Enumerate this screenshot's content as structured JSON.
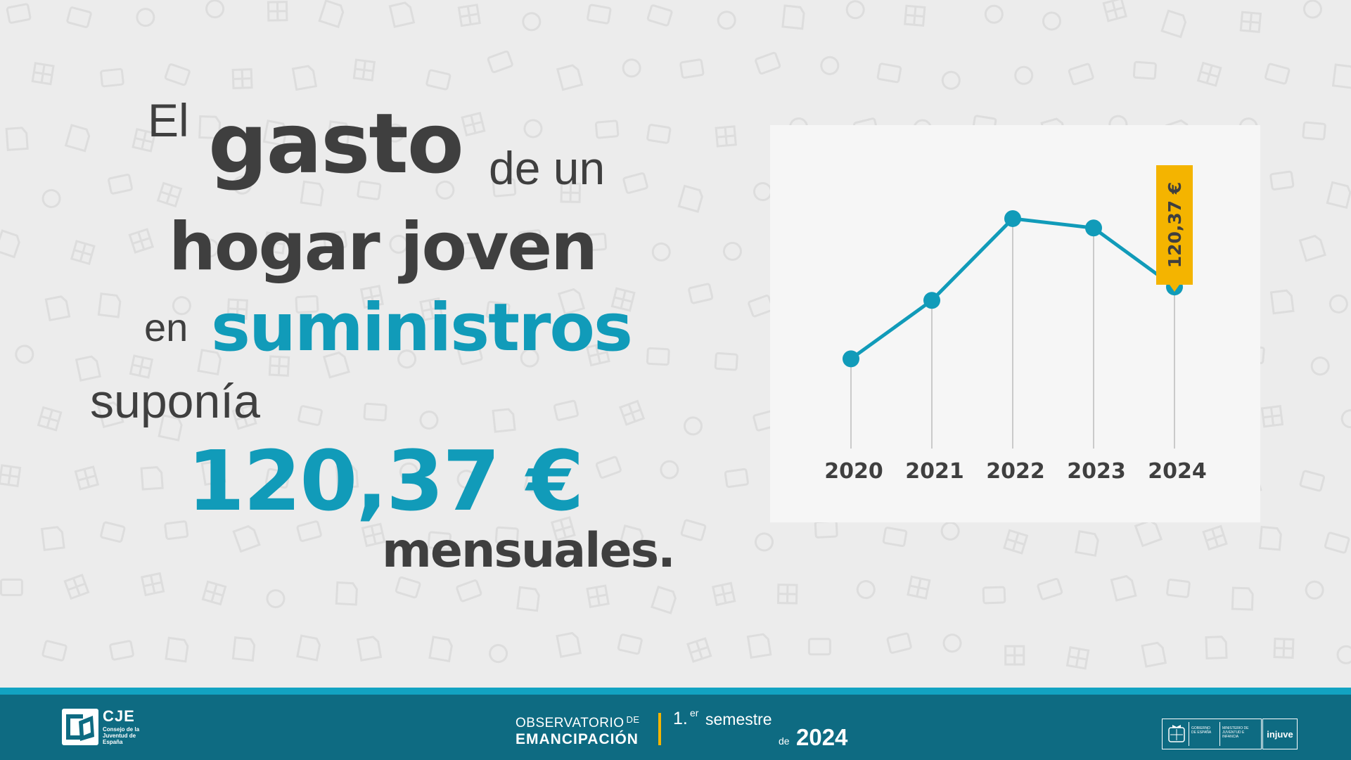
{
  "headline": {
    "w1": "El",
    "w2": "gasto",
    "w3": "de un",
    "w4": "hogar joven",
    "w5": "en",
    "w6": "suministros",
    "w7": "suponía",
    "w8": "120,37 €",
    "w9": "mensuales."
  },
  "colors": {
    "accent": "#119bb9",
    "text": "#3f3f3f",
    "line": "#119bb9",
    "callout": "#f4b400",
    "footer": "#0e6b82",
    "footer_stripe": "#12a3c2"
  },
  "chart_data": {
    "type": "line",
    "categories": [
      "2020",
      "2021",
      "2022",
      "2023",
      "2024"
    ],
    "values": [
      105.0,
      117.5,
      135.0,
      133.0,
      120.37
    ],
    "ylim": [
      70,
      155
    ],
    "y_axis_labels": false,
    "grid": "vertical drop lines at each point",
    "annotation": {
      "category": "2024",
      "label": "120,37 €"
    }
  },
  "footer": {
    "cje_title": "CJE",
    "cje_subtitle": "Consejo de la Juventud de España",
    "observatorio": "OBSERVATORIO",
    "de_small": "DE",
    "emancipacion": "EMANCIPACIÓN",
    "semester_num": "1.",
    "semester_sup": "er",
    "semester_word": "semestre",
    "year_de": "de",
    "year": "2024",
    "gov_line1": "GOBIERNO DE ESPAÑA",
    "gov_line2": "MINISTERIO DE JUVENTUD E INFANCIA",
    "injuve": "injuve"
  },
  "icons": {
    "background": "pattern-icons",
    "cje_logo": "cje-logo-icon",
    "gov_crest": "crest-icon"
  }
}
